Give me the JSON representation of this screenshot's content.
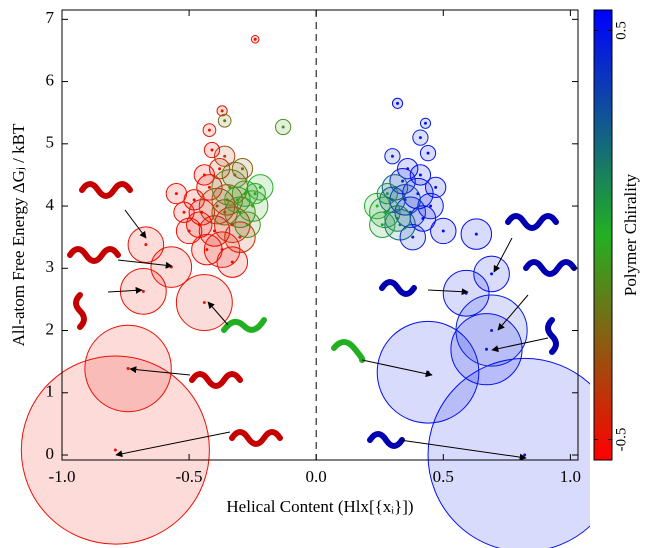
{
  "chart_data": {
    "type": "bubble",
    "x_label": "Helical Content (Hlx[{xᵢ}])",
    "y_label": "All-atom Free Energy ΔGⱼ / kBT",
    "colorbar_label": "Polymer Chirality",
    "xlim": [
      -1.0,
      1.03
    ],
    "ylim": [
      -0.08,
      7.15
    ],
    "xticks": [
      {
        "value": -1.0,
        "label": "-1.0"
      },
      {
        "value": -0.5,
        "label": "-0.5"
      },
      {
        "value": 0,
        "label": "0.0"
      },
      {
        "value": 0.5,
        "label": "0.5"
      },
      {
        "value": 1.0,
        "label": "1.0"
      }
    ],
    "yticks": [
      0,
      1,
      2,
      3,
      4,
      5,
      6,
      7
    ],
    "clim": [
      -0.55,
      0.55
    ],
    "cticks": [
      {
        "value": -0.5,
        "label": "-0.5"
      },
      0.5
    ],
    "colormap": [
      "#ff0000",
      "#22b022",
      "#0000ff"
    ],
    "points": [
      [
        -0.79,
        0.08,
        0.37,
        -0.5
      ],
      [
        -0.74,
        1.39,
        0.17,
        -0.5
      ],
      [
        -0.68,
        2.63,
        0.09,
        -0.5
      ],
      [
        -0.44,
        2.45,
        0.11,
        -0.47
      ],
      [
        -0.57,
        3.02,
        0.08,
        -0.5
      ],
      [
        -0.67,
        3.38,
        0.07,
        -0.5
      ],
      [
        0.82,
        0.0,
        0.38,
        0.5
      ],
      [
        0.44,
        1.33,
        0.2,
        0.5
      ],
      [
        0.67,
        1.7,
        0.14,
        0.5
      ],
      [
        0.69,
        2.0,
        0.14,
        0.45
      ],
      [
        0.59,
        2.6,
        0.09,
        0.5
      ],
      [
        0.69,
        2.91,
        0.07,
        0.5
      ],
      [
        0.63,
        3.55,
        0.06,
        0.5
      ],
      [
        -0.24,
        6.68,
        0.015,
        -0.5
      ],
      [
        -0.13,
        5.27,
        0.03,
        -0.1
      ],
      [
        -0.37,
        5.53,
        0.02,
        -0.45
      ],
      [
        -0.36,
        5.37,
        0.025,
        -0.2
      ],
      [
        -0.42,
        5.22,
        0.025,
        -0.45
      ],
      [
        0.32,
        5.65,
        0.02,
        0.5
      ],
      [
        0.43,
        5.33,
        0.02,
        0.45
      ],
      [
        0.41,
        5.1,
        0.03,
        0.45
      ],
      [
        0.44,
        4.85,
        0.03,
        0.5
      ],
      [
        -0.42,
        4.3,
        0.05,
        -0.5
      ],
      [
        -0.38,
        4.6,
        0.04,
        -0.45
      ],
      [
        -0.35,
        4.1,
        0.06,
        -0.3
      ],
      [
        -0.3,
        3.9,
        0.06,
        -0.1
      ],
      [
        -0.28,
        4.2,
        0.05,
        -0.05
      ],
      [
        -0.33,
        3.7,
        0.07,
        -0.4
      ],
      [
        -0.4,
        3.6,
        0.06,
        -0.5
      ],
      [
        -0.45,
        3.9,
        0.05,
        -0.5
      ],
      [
        -0.5,
        3.6,
        0.05,
        -0.5
      ],
      [
        -0.48,
        4.1,
        0.04,
        -0.5
      ],
      [
        -0.36,
        4.8,
        0.04,
        -0.35
      ],
      [
        -0.32,
        4.5,
        0.05,
        -0.2
      ],
      [
        -0.25,
        4.0,
        0.06,
        -0.05
      ],
      [
        -0.22,
        4.3,
        0.05,
        0.0
      ],
      [
        -0.3,
        3.5,
        0.06,
        -0.4
      ],
      [
        -0.37,
        3.3,
        0.07,
        -0.5
      ],
      [
        -0.43,
        3.3,
        0.06,
        -0.5
      ],
      [
        -0.52,
        3.9,
        0.04,
        -0.5
      ],
      [
        -0.39,
        4.0,
        0.07,
        -0.35
      ],
      [
        -0.34,
        4.3,
        0.07,
        -0.15
      ],
      [
        -0.29,
        4.6,
        0.04,
        -0.25
      ],
      [
        -0.41,
        4.9,
        0.03,
        -0.5
      ],
      [
        -0.27,
        3.7,
        0.05,
        -0.1
      ],
      [
        -0.46,
        3.7,
        0.05,
        -0.5
      ],
      [
        -0.33,
        3.1,
        0.06,
        -0.5
      ],
      [
        -0.55,
        4.2,
        0.04,
        -0.5
      ],
      [
        -0.24,
        4.2,
        0.04,
        -0.02
      ],
      [
        -0.36,
        3.9,
        0.05,
        -0.25
      ],
      [
        -0.31,
        4.1,
        0.05,
        -0.05
      ],
      [
        -0.44,
        4.5,
        0.04,
        -0.5
      ],
      [
        0.3,
        4.1,
        0.05,
        0.3
      ],
      [
        0.34,
        4.4,
        0.05,
        0.45
      ],
      [
        0.37,
        3.9,
        0.06,
        0.4
      ],
      [
        0.27,
        3.9,
        0.06,
        0.05
      ],
      [
        0.24,
        4.0,
        0.05,
        0.0
      ],
      [
        0.33,
        3.7,
        0.06,
        0.2
      ],
      [
        0.4,
        4.2,
        0.06,
        0.5
      ],
      [
        0.42,
        3.8,
        0.05,
        0.5
      ],
      [
        0.36,
        4.6,
        0.04,
        0.5
      ],
      [
        0.31,
        4.3,
        0.05,
        0.25
      ],
      [
        0.45,
        4.0,
        0.05,
        0.5
      ],
      [
        0.5,
        3.6,
        0.05,
        0.5
      ],
      [
        0.28,
        4.2,
        0.04,
        0.1
      ],
      [
        0.38,
        3.5,
        0.05,
        0.45
      ],
      [
        0.32,
        3.8,
        0.05,
        0.15
      ],
      [
        0.35,
        4.1,
        0.06,
        0.35
      ],
      [
        0.3,
        4.8,
        0.03,
        0.45
      ],
      [
        0.47,
        4.3,
        0.04,
        0.5
      ],
      [
        0.26,
        3.7,
        0.05,
        0.05
      ],
      [
        0.41,
        4.5,
        0.04,
        0.5
      ]
    ]
  }
}
